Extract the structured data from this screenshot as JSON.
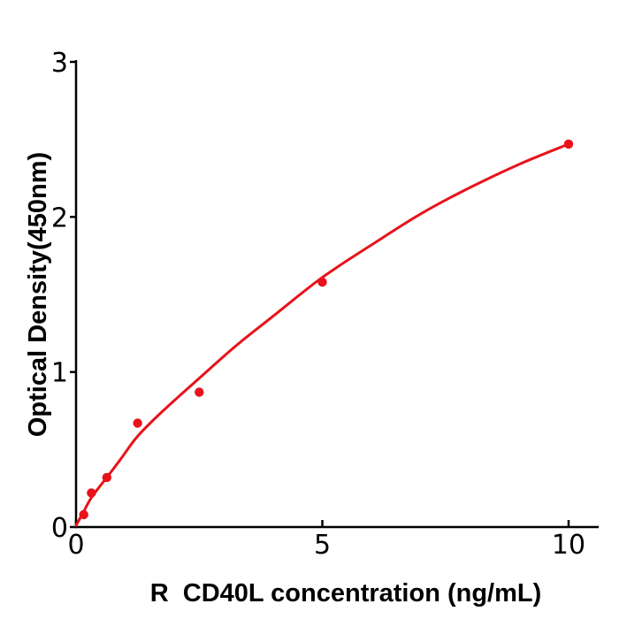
{
  "chart_data": {
    "type": "scatter",
    "title": "",
    "xlabel": "R  CD40L concentration (ng/mL)",
    "ylabel": "Optical Density(450nm)",
    "xlim": [
      0,
      10.6
    ],
    "ylim": [
      0,
      3
    ],
    "grid": false,
    "legend": null,
    "axis_color": "#000000",
    "point_color": "#e8121a",
    "line_color": "#e8121a",
    "x_ticks": [
      {
        "value": 0,
        "label": "0"
      },
      {
        "value": 5,
        "label": "5"
      },
      {
        "value": 10,
        "label": "10"
      }
    ],
    "y_ticks": [
      {
        "value": 0,
        "label": "0"
      },
      {
        "value": 1,
        "label": "1"
      },
      {
        "value": 2,
        "label": "2"
      },
      {
        "value": 3,
        "label": "3"
      }
    ],
    "points": [
      [
        0.156,
        0.08
      ],
      [
        0.3125,
        0.22
      ],
      [
        0.625,
        0.32
      ],
      [
        1.25,
        0.67
      ],
      [
        2.5,
        0.87
      ],
      [
        5,
        1.58
      ],
      [
        10,
        2.47
      ]
    ],
    "fit_curve": [
      [
        0,
        0.01
      ],
      [
        0.156,
        0.1
      ],
      [
        0.3125,
        0.19
      ],
      [
        0.625,
        0.32
      ],
      [
        0.9,
        0.435
      ],
      [
        1.25,
        0.585
      ],
      [
        1.75,
        0.745
      ],
      [
        2.5,
        0.96
      ],
      [
        3.25,
        1.17
      ],
      [
        4,
        1.36
      ],
      [
        5,
        1.61
      ],
      [
        6,
        1.82
      ],
      [
        7,
        2.02
      ],
      [
        8,
        2.19
      ],
      [
        9,
        2.34
      ],
      [
        10,
        2.47
      ]
    ]
  }
}
